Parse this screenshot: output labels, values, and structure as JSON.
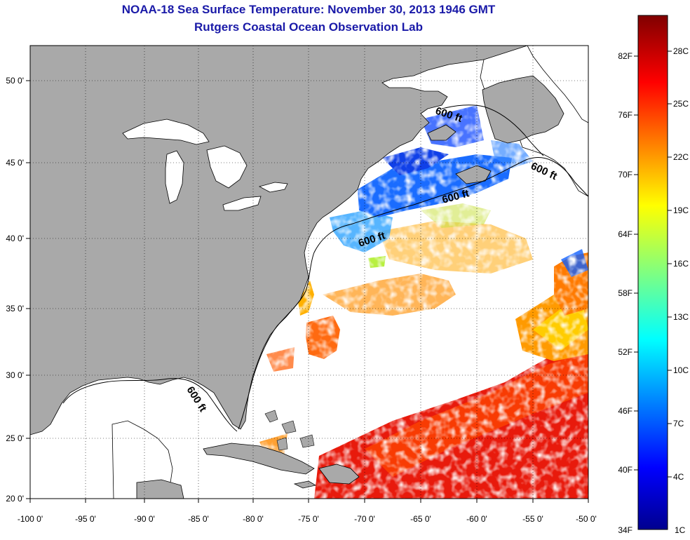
{
  "title": "NOAA-18 Sea Surface Temperature:  November 30, 2013 1946 GMT",
  "subtitle": "Rutgers Coastal Ocean Observation Lab",
  "map": {
    "lon_range": [
      -100,
      -50
    ],
    "lat_range": [
      20,
      52.5
    ],
    "lon_ticks": [
      "-100 0'",
      "-95 0'",
      "-90 0'",
      "-85 0'",
      "-80 0'",
      "-75 0'",
      "-70 0'",
      "-65 0'",
      "-60 0'",
      "-55 0'",
      "-50 0'"
    ],
    "lat_ticks": [
      "20 0'",
      "25 0'",
      "30 0'",
      "35 0'",
      "40 0'",
      "45 0'",
      "50 0'"
    ],
    "contour_label": "600 ft",
    "land_color": "#a9a9a9",
    "grid": "dotted"
  },
  "colorbar": {
    "fahrenheit_labels": [
      "82F",
      "76F",
      "70F",
      "64F",
      "58F",
      "52F",
      "46F",
      "40F",
      "34F"
    ],
    "celsius_labels": [
      "28C",
      "25C",
      "22C",
      "19C",
      "16C",
      "13C",
      "10C",
      "7C",
      "4C",
      "1C"
    ],
    "range_c": [
      1,
      30
    ],
    "colormap": "jet"
  }
}
